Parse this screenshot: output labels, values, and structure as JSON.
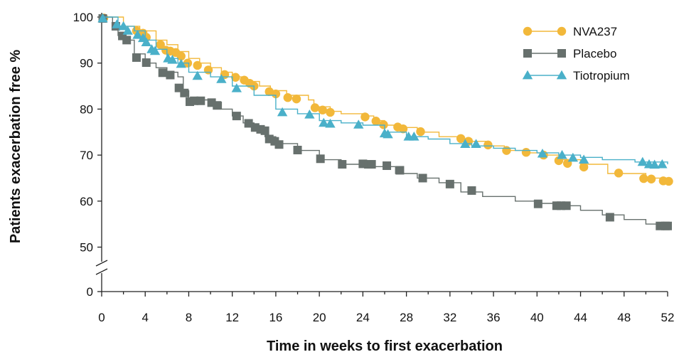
{
  "chart_data": {
    "type": "line",
    "xlabel": "Time in weeks to first exacerbation",
    "ylabel": "Patients exacerbation free %",
    "x_ticks": [
      0,
      4,
      8,
      12,
      16,
      20,
      24,
      28,
      32,
      36,
      40,
      44,
      48,
      52
    ],
    "y_ticks": [
      0,
      50,
      60,
      70,
      80,
      90,
      100
    ],
    "xlim": [
      0,
      52
    ],
    "ylim": [
      45,
      100
    ],
    "y_axis_break": true,
    "grid": false,
    "legend_position": "top-right",
    "series": [
      {
        "name": "NVA237",
        "color": "#f2b83a",
        "marker": "circle",
        "points": [
          [
            0,
            100
          ],
          [
            2,
            98
          ],
          [
            3.5,
            97
          ],
          [
            5,
            95
          ],
          [
            6,
            94
          ],
          [
            7,
            92.5
          ],
          [
            8,
            91
          ],
          [
            9,
            90
          ],
          [
            10,
            89
          ],
          [
            11,
            88
          ],
          [
            12,
            87
          ],
          [
            13,
            86
          ],
          [
            14.5,
            85
          ],
          [
            15.5,
            84
          ],
          [
            17,
            83
          ],
          [
            19,
            82
          ],
          [
            19.5,
            80.5
          ],
          [
            21,
            79.5
          ],
          [
            22,
            79
          ],
          [
            24,
            78.5
          ],
          [
            25,
            77.5
          ],
          [
            26,
            76.5
          ],
          [
            27.5,
            76
          ],
          [
            29,
            75
          ],
          [
            31,
            74
          ],
          [
            33,
            73.5
          ],
          [
            34,
            73
          ],
          [
            35.5,
            72
          ],
          [
            37,
            71
          ],
          [
            39,
            70.5
          ],
          [
            40.5,
            70
          ],
          [
            42,
            69
          ],
          [
            44,
            68
          ],
          [
            46.5,
            66
          ],
          [
            50,
            65
          ],
          [
            51.5,
            64.5
          ],
          [
            52,
            64.3
          ]
        ],
        "markers": [
          [
            0.2,
            99.8
          ],
          [
            3.2,
            97
          ],
          [
            3.8,
            96.5
          ],
          [
            4.1,
            95.6
          ],
          [
            5.4,
            94
          ],
          [
            5.9,
            92.8
          ],
          [
            6.3,
            92.6
          ],
          [
            6.8,
            92.3
          ],
          [
            7.3,
            91.5
          ],
          [
            7.9,
            90
          ],
          [
            8.8,
            89.5
          ],
          [
            9.8,
            88.5
          ],
          [
            11.3,
            87.5
          ],
          [
            12.3,
            86.9
          ],
          [
            13.1,
            86.3
          ],
          [
            13.6,
            85.6
          ],
          [
            14,
            85
          ],
          [
            15.4,
            83.8
          ],
          [
            16,
            83.3
          ],
          [
            17.1,
            82.5
          ],
          [
            17.9,
            82.2
          ],
          [
            19.6,
            80.3
          ],
          [
            20.3,
            79.8
          ],
          [
            21,
            79.3
          ],
          [
            24.2,
            78.3
          ],
          [
            25.2,
            77.4
          ],
          [
            25.9,
            76.6
          ],
          [
            27.2,
            76.1
          ],
          [
            27.7,
            75.7
          ],
          [
            29.3,
            75.1
          ],
          [
            33,
            73.6
          ],
          [
            33.7,
            73
          ],
          [
            35.5,
            72.2
          ],
          [
            37.2,
            71
          ],
          [
            39,
            70.6
          ],
          [
            40.6,
            70
          ],
          [
            42,
            68.8
          ],
          [
            42.8,
            68.2
          ],
          [
            44.3,
            67.4
          ],
          [
            47.5,
            66.1
          ],
          [
            49.8,
            64.9
          ],
          [
            50.5,
            64.8
          ],
          [
            51.6,
            64.4
          ],
          [
            52.1,
            64.3
          ]
        ]
      },
      {
        "name": "Placebo",
        "color": "#67706d",
        "marker": "square",
        "points": [
          [
            0,
            100
          ],
          [
            1,
            98
          ],
          [
            1.5,
            96
          ],
          [
            2,
            95
          ],
          [
            3,
            92
          ],
          [
            4,
            90
          ],
          [
            5,
            89
          ],
          [
            6,
            88
          ],
          [
            7,
            87
          ],
          [
            7.5,
            84
          ],
          [
            8,
            82
          ],
          [
            10,
            81.5
          ],
          [
            11,
            80
          ],
          [
            12,
            78.5
          ],
          [
            13,
            77
          ],
          [
            14,
            76
          ],
          [
            15,
            74
          ],
          [
            16,
            72.5
          ],
          [
            18,
            71
          ],
          [
            20,
            69
          ],
          [
            22,
            68
          ],
          [
            25,
            67.5
          ],
          [
            27,
            66
          ],
          [
            29,
            65
          ],
          [
            31,
            64
          ],
          [
            33,
            62
          ],
          [
            35,
            61
          ],
          [
            38,
            60
          ],
          [
            40,
            59.5
          ],
          [
            42,
            59
          ],
          [
            44,
            58
          ],
          [
            46,
            57
          ],
          [
            48,
            56
          ],
          [
            50,
            55
          ],
          [
            52,
            55
          ]
        ],
        "markers": [
          [
            0.1,
            99.7
          ],
          [
            1.3,
            98
          ],
          [
            1.9,
            95.9
          ],
          [
            2.3,
            95
          ],
          [
            3.2,
            91.2
          ],
          [
            4.1,
            90.1
          ],
          [
            5.6,
            87.9
          ],
          [
            6.3,
            87.4
          ],
          [
            7.1,
            84.6
          ],
          [
            7.6,
            83.5
          ],
          [
            8.1,
            81.6
          ],
          [
            8.5,
            81.8
          ],
          [
            9.1,
            81.8
          ],
          [
            10.1,
            81.4
          ],
          [
            10.6,
            80.8
          ],
          [
            12.4,
            78.5
          ],
          [
            13.5,
            76.9
          ],
          [
            14.1,
            76
          ],
          [
            14.6,
            75.6
          ],
          [
            15,
            75.3
          ],
          [
            15.4,
            73.5
          ],
          [
            15.9,
            73
          ],
          [
            16.3,
            72.3
          ],
          [
            18,
            71.1
          ],
          [
            20.1,
            69.2
          ],
          [
            22.1,
            68
          ],
          [
            24,
            68.1
          ],
          [
            24.5,
            68
          ],
          [
            24.8,
            68
          ],
          [
            26.2,
            67.7
          ],
          [
            27.4,
            66.7
          ],
          [
            29.5,
            65
          ],
          [
            32,
            63.7
          ],
          [
            34,
            62.3
          ],
          [
            40.1,
            59.4
          ],
          [
            41.8,
            59
          ],
          [
            42.2,
            59
          ],
          [
            42.7,
            59
          ],
          [
            46.7,
            56.5
          ],
          [
            51.3,
            54.6
          ],
          [
            51.8,
            54.6
          ],
          [
            52,
            54.6
          ]
        ]
      },
      {
        "name": "Tiotropium",
        "color": "#4ab0c9",
        "marker": "triangle",
        "points": [
          [
            0,
            100
          ],
          [
            1.5,
            98
          ],
          [
            3,
            97
          ],
          [
            4,
            95
          ],
          [
            5,
            93
          ],
          [
            6,
            91
          ],
          [
            7,
            90
          ],
          [
            8,
            88
          ],
          [
            10,
            87
          ],
          [
            12,
            85
          ],
          [
            14,
            83
          ],
          [
            16,
            80
          ],
          [
            18,
            79
          ],
          [
            20,
            77.5
          ],
          [
            22,
            77
          ],
          [
            24,
            76.5
          ],
          [
            26,
            75
          ],
          [
            28,
            74
          ],
          [
            30,
            73.5
          ],
          [
            32,
            72.5
          ],
          [
            34,
            72
          ],
          [
            36,
            71.5
          ],
          [
            38,
            71
          ],
          [
            40,
            70.5
          ],
          [
            42,
            70
          ],
          [
            44,
            69.5
          ],
          [
            46,
            69
          ],
          [
            49,
            68.5
          ],
          [
            52,
            68
          ]
        ],
        "markers": [
          [
            0.1,
            99.7
          ],
          [
            1.4,
            98.4
          ],
          [
            2,
            98
          ],
          [
            2.4,
            97
          ],
          [
            3.3,
            96.1
          ],
          [
            3.8,
            95.4
          ],
          [
            4.1,
            94.5
          ],
          [
            4.6,
            93
          ],
          [
            4.9,
            92.6
          ],
          [
            6.1,
            91
          ],
          [
            6.5,
            90.7
          ],
          [
            7.3,
            89.8
          ],
          [
            8.8,
            87.2
          ],
          [
            11,
            86.5
          ],
          [
            12.4,
            84.5
          ],
          [
            16.6,
            79.3
          ],
          [
            19.1,
            78.8
          ],
          [
            20.4,
            77
          ],
          [
            21,
            76.8
          ],
          [
            23.6,
            76.6
          ],
          [
            26,
            74.7
          ],
          [
            26.3,
            74.5
          ],
          [
            28.2,
            74
          ],
          [
            28.7,
            74
          ],
          [
            33.4,
            72.4
          ],
          [
            34.4,
            72.4
          ],
          [
            40.5,
            70.3
          ],
          [
            42.3,
            70
          ],
          [
            43.3,
            69.4
          ],
          [
            44.3,
            69
          ],
          [
            49.7,
            68.5
          ],
          [
            50.3,
            68
          ],
          [
            50.8,
            67.9
          ],
          [
            51.5,
            68
          ]
        ]
      }
    ]
  }
}
